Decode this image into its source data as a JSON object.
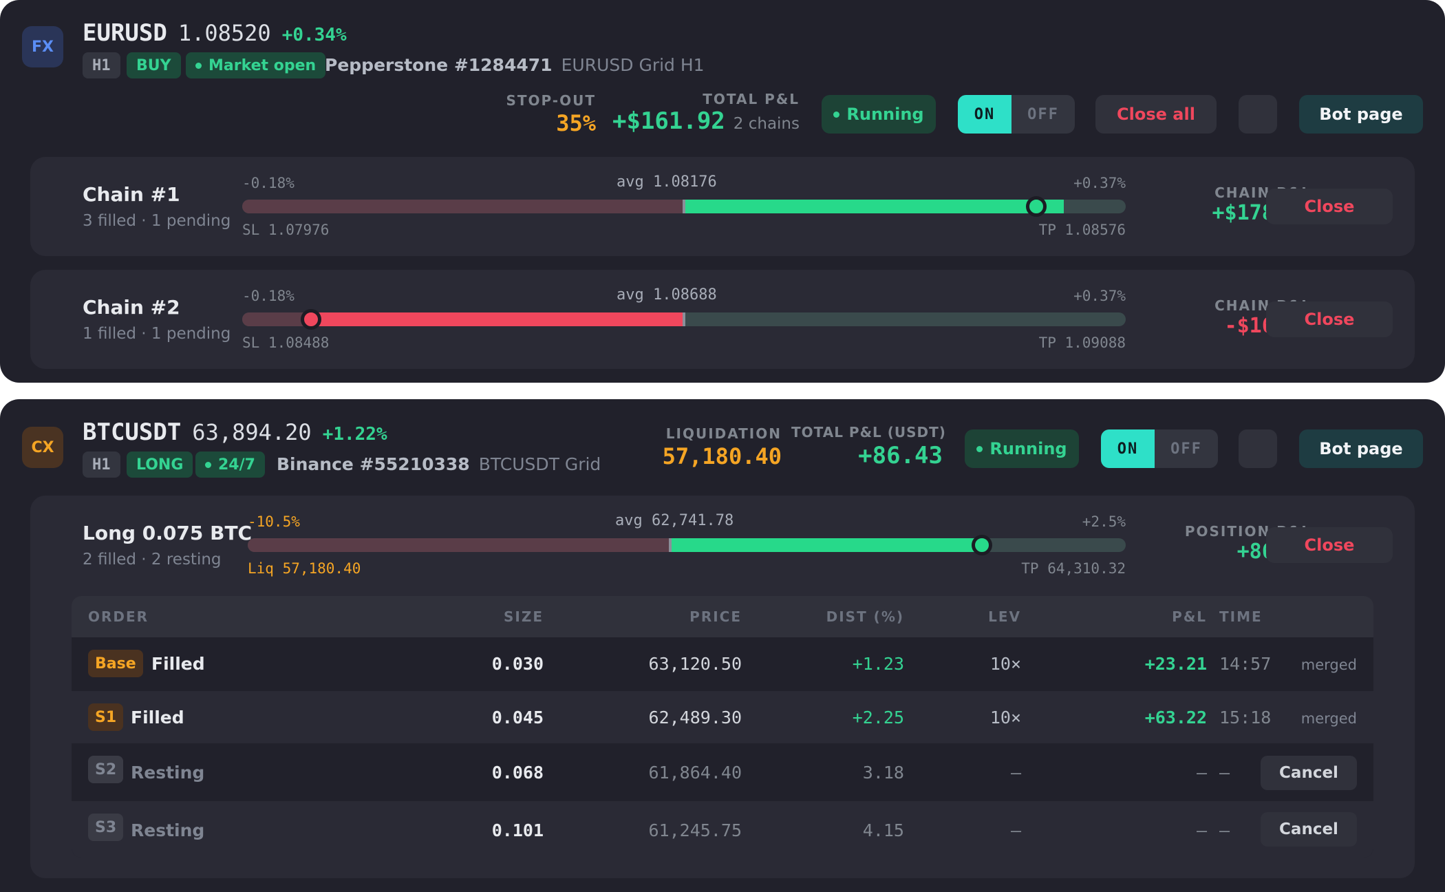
{
  "eurusd": {
    "badge": "FX",
    "symbol": "EURUSD",
    "price": "1.08520",
    "change": "+0.34%",
    "timeframe": "H1",
    "side": "BUY",
    "market_status": "Market open",
    "account": "Pepperstone #1284471",
    "bot_name": "EURUSD Grid H1",
    "stop_out_label": "STOP-OUT",
    "stop_out_value": "35%",
    "total_pnl_label": "TOTAL P&L",
    "total_pnl_value": "+$161.92",
    "chains_count": "2 chains",
    "status": "Running",
    "toggle_on": "ON",
    "toggle_off": "OFF",
    "close_all_label": "Close all",
    "bot_page_label": "Bot page",
    "chains": [
      {
        "title": "Chain #1",
        "subtitle": "3 filled · 1 pending",
        "left_pct": "-0.18%",
        "avg": "avg 1.08176",
        "right_pct": "+0.37%",
        "sl": "SL 1.07976",
        "tp": "TP 1.08576",
        "pnl_label": "CHAIN P&L",
        "pnl": "+$178.72",
        "close_label": "Close",
        "progress": 0.86
      },
      {
        "title": "Chain #2",
        "subtitle": "1 filled · 1 pending",
        "left_pct": "-0.18%",
        "avg": "avg 1.08688",
        "right_pct": "+0.37%",
        "sl": "SL 1.08488",
        "tp": "TP 1.09088",
        "pnl_label": "CHAIN P&L",
        "pnl": "-$16.80",
        "close_label": "Close",
        "progress": -0.84
      }
    ]
  },
  "btcusdt": {
    "badge": "CX",
    "symbol": "BTCUSDT",
    "price": "63,894.20",
    "change": "+1.22%",
    "timeframe": "H1",
    "side": "LONG",
    "market_status": "24/7",
    "account": "Binance #55210338",
    "bot_name": "BTCUSDT Grid",
    "liq_label": "LIQUIDATION",
    "liq_value": "57,180.40",
    "total_pnl_label": "TOTAL P&L (USDT)",
    "total_pnl_value": "+86.43",
    "status": "Running",
    "toggle_on": "ON",
    "toggle_off": "OFF",
    "bot_page_label": "Bot page",
    "position": {
      "title": "Long 0.075 BTC",
      "subtitle": "2 filled · 2 resting",
      "left_pct": "-10.5%",
      "avg": "avg 62,741.78",
      "right_pct": "+2.5%",
      "liq": "Liq 57,180.40",
      "tp": "TP 64,310.32",
      "pnl_label": "POSITION P&L",
      "pnl": "+86.43",
      "close_label": "Close",
      "progress": 0.73
    },
    "table": {
      "headers": [
        "ORDER",
        "SIZE",
        "PRICE",
        "DIST (%)",
        "LEV",
        "P&L",
        "TIME"
      ],
      "rows": [
        {
          "tag": "Base",
          "state": "Filled",
          "size": "0.030",
          "price": "63,120.50",
          "dist": "+1.23",
          "lev": "10×",
          "pnl": "+23.21",
          "time": "14:57",
          "action": "merged"
        },
        {
          "tag": "S1",
          "state": "Filled",
          "size": "0.045",
          "price": "62,489.30",
          "dist": "+2.25",
          "lev": "10×",
          "pnl": "+63.22",
          "time": "15:18",
          "action": "merged"
        },
        {
          "tag": "S2",
          "state": "Resting",
          "size": "0.068",
          "price": "61,864.40",
          "dist": "3.18",
          "lev": "—",
          "pnl": "—",
          "time": "—",
          "action": "Cancel"
        },
        {
          "tag": "S3",
          "state": "Resting",
          "size": "0.101",
          "price": "61,245.75",
          "dist": "4.15",
          "lev": "—",
          "pnl": "—",
          "time": "—",
          "action": "Cancel"
        }
      ]
    }
  },
  "colors": {
    "green": "#34d392",
    "red": "#f0475d",
    "orange": "#f5a524",
    "teal": "#2ee0c8",
    "card": "#21212b"
  }
}
